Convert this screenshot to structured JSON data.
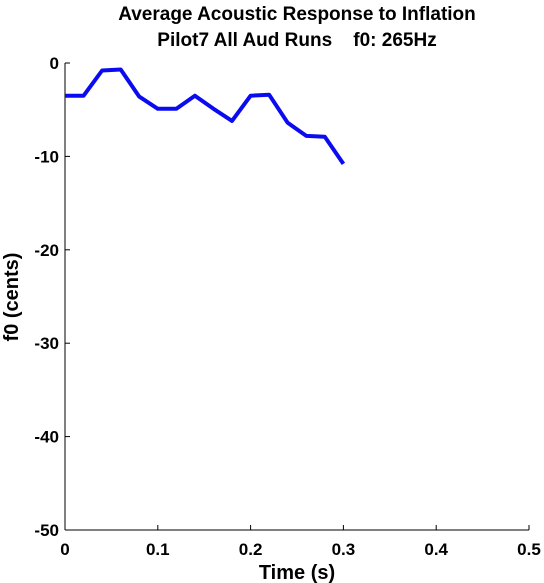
{
  "chart_data": {
    "type": "line",
    "title": "Average Acoustic Response to Inflation",
    "subtitle": "Pilot7 All Aud Runs    f0: 265Hz",
    "xlabel": "Time (s)",
    "ylabel": "f0 (cents)",
    "xlim": [
      0,
      0.5
    ],
    "ylim": [
      -50,
      0
    ],
    "xticks": [
      0,
      0.1,
      0.2,
      0.3,
      0.4,
      0.5
    ],
    "xtick_labels": [
      "0",
      "0.1",
      "0.2",
      "0.3",
      "0.4",
      "0.5"
    ],
    "yticks": [
      0,
      -10,
      -20,
      -30,
      -40,
      -50
    ],
    "ytick_labels": [
      "0",
      "-10",
      "-20",
      "-30",
      "-40",
      "-50"
    ],
    "grid": false,
    "series": [
      {
        "color": "#0b0bef",
        "x": [
          0,
          0.02,
          0.04,
          0.06,
          0.08,
          0.1,
          0.12,
          0.14,
          0.16,
          0.18,
          0.2,
          0.22,
          0.24,
          0.26,
          0.28,
          0.3
        ],
        "y": [
          -3.5,
          -3.5,
          -0.8,
          -0.7,
          -3.6,
          -4.9,
          -4.9,
          -3.5,
          -4.9,
          -6.2,
          -3.5,
          -3.4,
          -6.4,
          -7.8,
          -7.9,
          -10.8
        ]
      }
    ]
  }
}
